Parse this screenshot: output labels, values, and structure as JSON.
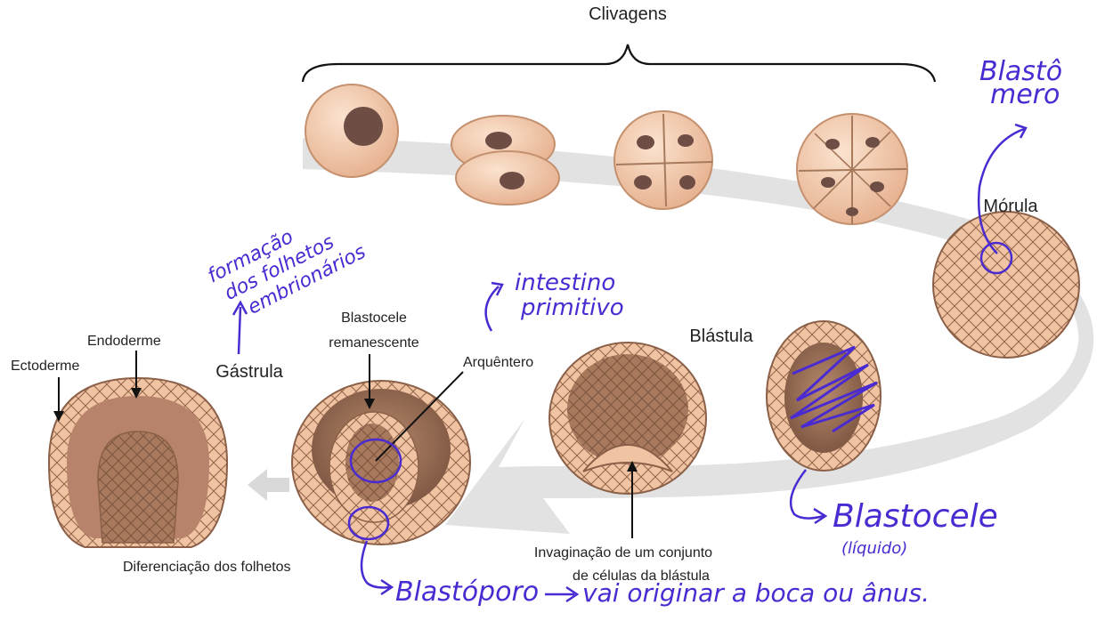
{
  "labels": {
    "clivagens": "Clivagens",
    "morula": "Mórula",
    "blastula": "Blástula",
    "gastrula": "Gástrula",
    "ectoderme": "Ectoderme",
    "endoderme": "Endoderme",
    "blastocele_line1": "Blastocele",
    "blastocele_line2": "remanescente",
    "arquentero": "Arquêntero",
    "diferenciacao": "Diferenciação dos folhetos",
    "invaginacao_line1": "Invaginação de um conjunto",
    "invaginacao_line2": "de células da blástula"
  },
  "handwritten": {
    "blastomero_line1": "Blastô",
    "blastomero_line2": "mero",
    "formacao_line1": "formação",
    "formacao_line2": "dos folhetos",
    "formacao_line3": "embrionários",
    "intestino_line1": "intestino",
    "intestino_line2": "primitivo",
    "blastocele": "Blastocele",
    "liquido": "(líquido)",
    "blastoporo": "Blastóporo",
    "vai_originar": "vai originar a boca ou ânus."
  },
  "colors": {
    "cell_fill": "#f2c9a8",
    "cell_stroke": "#8a6048",
    "nucleus": "#6e4d45",
    "interior": "#9c6f52",
    "arrow_band": "#d9d9d9",
    "ink": "#4a2bd1"
  }
}
